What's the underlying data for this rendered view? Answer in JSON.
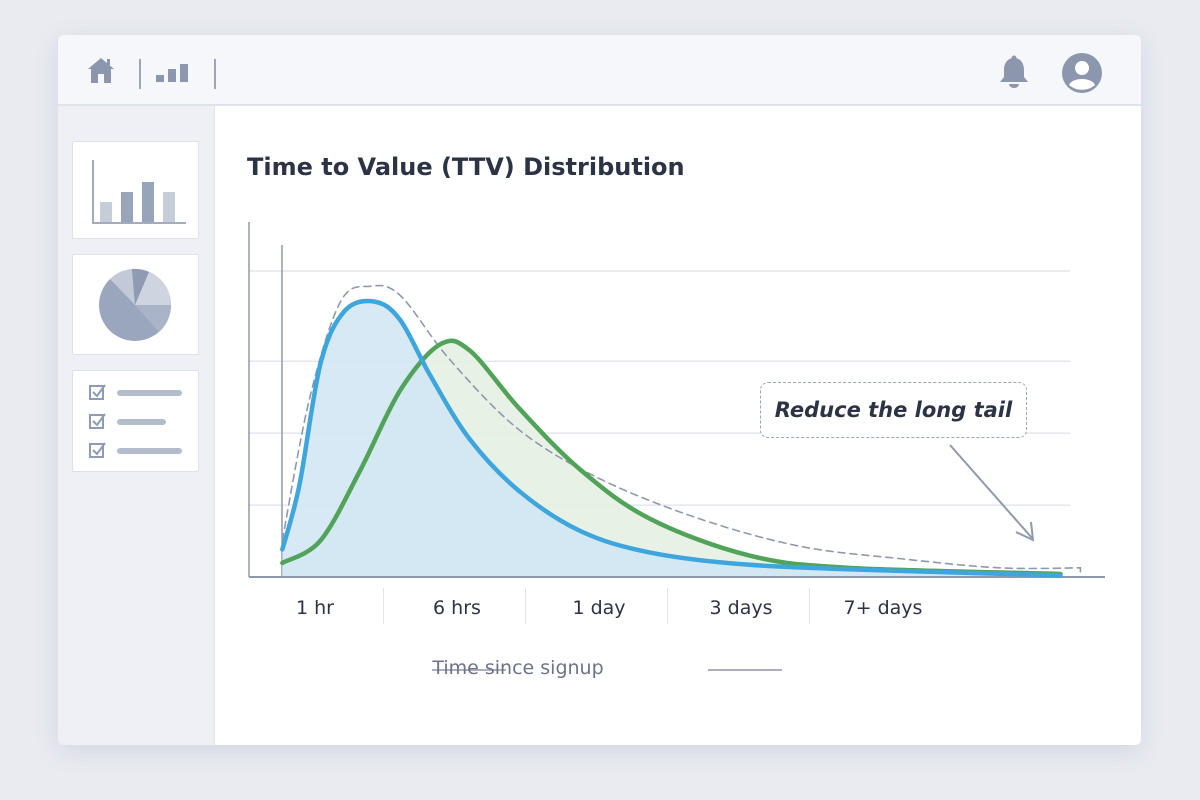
{
  "topbar": {
    "icons": [
      "home-icon",
      "bar-chart-icon",
      "bell-icon",
      "user-avatar-icon"
    ]
  },
  "sidebar": {
    "cards": [
      "bar-chart-thumbnail",
      "pie-chart-thumbnail",
      "checklist-thumbnail"
    ]
  },
  "colors": {
    "blue": "#3ea6dc",
    "green": "#52a35a",
    "dashed": "#8e99ad",
    "blue_fill": "#d2e7f4",
    "green_fill": "#e6f0e3"
  },
  "chart_data": {
    "type": "line",
    "title": "Time to Value (TTV) Distribution",
    "xlabel": "Time since signup",
    "ylabel": "",
    "categories": [
      "1 hr",
      "6 hrs",
      "1 day",
      "3 days",
      "7+ days"
    ],
    "grid": true,
    "ylim": [
      0,
      100
    ],
    "annotation": "Reduce the long tail",
    "series": [
      {
        "style": "solid",
        "color": "#3ea6dc",
        "filled": true,
        "x": [
          -0.23,
          -0.11,
          0.04,
          0.21,
          0.42,
          0.6,
          0.81,
          1.09,
          1.44,
          1.87,
          2.36,
          3.06,
          4.12,
          5.25
        ],
        "y": [
          9,
          30,
          70,
          87,
          90,
          84,
          66,
          45,
          28,
          15,
          8,
          4,
          2,
          0.5
        ]
      },
      {
        "style": "solid",
        "color": "#52a35a",
        "filled": true,
        "x": [
          -0.23,
          0.04,
          0.32,
          0.6,
          0.88,
          1.09,
          1.44,
          1.87,
          2.36,
          3.06,
          3.76,
          5.25
        ],
        "y": [
          4.6,
          12,
          35,
          61,
          76,
          74,
          55,
          35,
          19,
          7,
          3,
          1
        ]
      },
      {
        "style": "dashed",
        "color": "#8e99ad",
        "filled": false,
        "x": [
          -0.23,
          -0.04,
          0.18,
          0.39,
          0.6,
          0.95,
          1.44,
          2.01,
          2.71,
          3.42,
          4.12,
          4.82,
          5.39
        ],
        "y": [
          12,
          58,
          90,
          95,
          92,
          71,
          48,
          32,
          19,
          10,
          6,
          3,
          3
        ]
      }
    ]
  }
}
